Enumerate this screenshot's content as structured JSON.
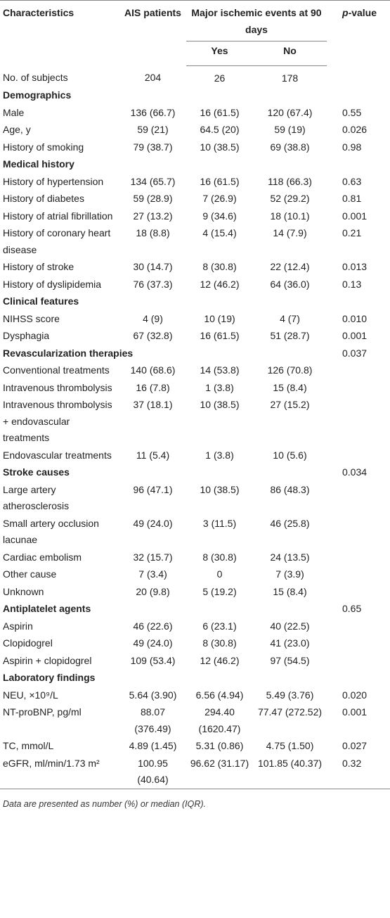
{
  "table": {
    "header": {
      "characteristics": "Characteristics",
      "ais": "AIS patients",
      "events": "Major ischemic events at 90 days",
      "p_value": "p-value",
      "yes": "Yes",
      "no": "No"
    },
    "subjects": [
      "No. of subjects",
      "204",
      "26",
      "178"
    ],
    "sections": [
      {
        "title": "Demographics",
        "rows": [
          [
            "Male",
            "136 (66.7)",
            "16 (61.5)",
            "120 (67.4)",
            "0.55"
          ],
          [
            "Age, y",
            "59 (21)",
            "64.5 (20)",
            "59 (19)",
            "0.026"
          ],
          [
            "History of smoking",
            "79 (38.7)",
            "10 (38.5)",
            "69 (38.8)",
            "0.98"
          ]
        ]
      },
      {
        "title": "Medical history",
        "rows": [
          [
            "History of hypertension",
            "134 (65.7)",
            "16 (61.5)",
            "118 (66.3)",
            "0.63"
          ],
          [
            "History of diabetes",
            "59 (28.9)",
            "7 (26.9)",
            "52 (29.2)",
            "0.81"
          ],
          [
            "History of atrial fibrillation",
            "27 (13.2)",
            "9 (34.6)",
            "18 (10.1)",
            "0.001"
          ],
          [
            "History of coronary heart disease",
            "18 (8.8)",
            "4 (15.4)",
            "14 (7.9)",
            "0.21"
          ],
          [
            "History of stroke",
            "30 (14.7)",
            "8 (30.8)",
            "22 (12.4)",
            "0.013"
          ],
          [
            "History of dyslipidemia",
            "76 (37.3)",
            "12 (46.2)",
            "64 (36.0)",
            "0.13"
          ]
        ]
      },
      {
        "title": "Clinical features",
        "rows": [
          [
            "NIHSS score",
            "4 (9)",
            "10 (19)",
            "4 (7)",
            "0.010"
          ],
          [
            "Dysphagia",
            "67 (32.8)",
            "16 (61.5)",
            "51 (28.7)",
            "0.001"
          ]
        ]
      },
      {
        "title": "Revascularization therapies",
        "p_value": "0.037",
        "rows": [
          [
            "Conventional treatments",
            "140 (68.6)",
            "14 (53.8)",
            "126 (70.8)"
          ],
          [
            "Intravenous thrombolysis",
            "16 (7.8)",
            "1 (3.8)",
            "15 (8.4)"
          ],
          [
            "Intravenous thrombolysis + endovascular treatments",
            "37 (18.1)",
            "10 (38.5)",
            "27 (15.2)"
          ],
          [
            "Endovascular treatments",
            "11 (5.4)",
            "1 (3.8)",
            "10 (5.6)"
          ]
        ]
      },
      {
        "title": "Stroke causes",
        "p_value": "0.034",
        "rows": [
          [
            "Large artery atherosclerosis",
            "96 (47.1)",
            "10 (38.5)",
            "86 (48.3)"
          ],
          [
            "Small artery occlusion lacunae",
            "49 (24.0)",
            "3 (11.5)",
            "46 (25.8)"
          ],
          [
            "Cardiac embolism",
            "32 (15.7)",
            "8 (30.8)",
            "24 (13.5)"
          ],
          [
            "Other cause",
            "7 (3.4)",
            "0",
            "7 (3.9)"
          ],
          [
            "Unknown",
            "20 (9.8)",
            "5 (19.2)",
            "15 (8.4)"
          ]
        ]
      },
      {
        "title": "Antiplatelet agents",
        "p_value": "0.65",
        "rows": [
          [
            "Aspirin",
            "46 (22.6)",
            "6 (23.1)",
            "40 (22.5)"
          ],
          [
            "Clopidogrel",
            "49 (24.0)",
            "8 (30.8)",
            "41 (23.0)"
          ],
          [
            "Aspirin + clopidogrel",
            "109 (53.4)",
            "12 (46.2)",
            "97 (54.5)"
          ]
        ]
      },
      {
        "title": "Laboratory findings",
        "rows": [
          [
            "NEU, ×10⁹/L",
            "5.64 (3.90)",
            "6.56 (4.94)",
            "5.49 (3.76)",
            "0.020"
          ],
          [
            "NT-proBNP, pg/ml",
            "88.07 (376.49)",
            "294.40 (1620.47)",
            "77.47 (272.52)",
            "0.001"
          ],
          [
            "TC, mmol/L",
            "4.89 (1.45)",
            "5.31 (0.86)",
            "4.75 (1.50)",
            "0.027"
          ],
          [
            "eGFR, ml/min/1.73 m²",
            "100.95 (40.64)",
            "96.62 (31.17)",
            "101.85 (40.37)",
            "0.32"
          ]
        ]
      }
    ],
    "footnote": "Data are presented as number (%) or median (IQR)."
  }
}
